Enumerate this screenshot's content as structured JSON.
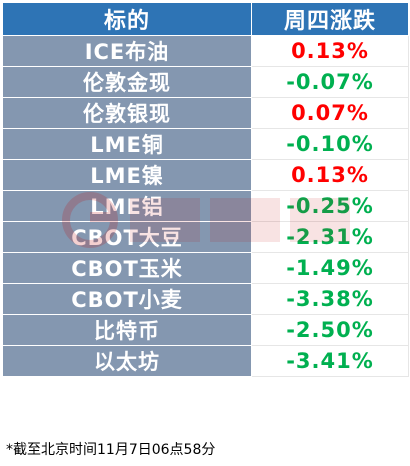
{
  "header": {
    "name_col": "标的",
    "change_col": "周四涨跌"
  },
  "colors": {
    "header_bg": "#2e74b5",
    "name_bg": "#8497b0",
    "positive": "#ff0000",
    "negative": "#00b050"
  },
  "rows": [
    {
      "name": "ICE布油",
      "change": "0.13%",
      "direction": "up"
    },
    {
      "name": "伦敦金现",
      "change": "-0.07%",
      "direction": "down"
    },
    {
      "name": "伦敦银现",
      "change": "0.07%",
      "direction": "up"
    },
    {
      "name": "LME铜",
      "change": "-0.10%",
      "direction": "down"
    },
    {
      "name": "LME镍",
      "change": "0.13%",
      "direction": "up"
    },
    {
      "name": "LME铝",
      "change": "-0.25%",
      "direction": "down"
    },
    {
      "name": "CBOT大豆",
      "change": "-2.31%",
      "direction": "down"
    },
    {
      "name": "CBOT玉米",
      "change": "-1.49%",
      "direction": "down"
    },
    {
      "name": "CBOT小麦",
      "change": "-3.38%",
      "direction": "down"
    },
    {
      "name": "比特币",
      "change": "-2.50%",
      "direction": "down"
    },
    {
      "name": "以太坊",
      "change": "-3.41%",
      "direction": "down"
    }
  ],
  "footnote": "*截至北京时间11月7日06点58分",
  "watermark_icon": "cailian-logo-icon"
}
